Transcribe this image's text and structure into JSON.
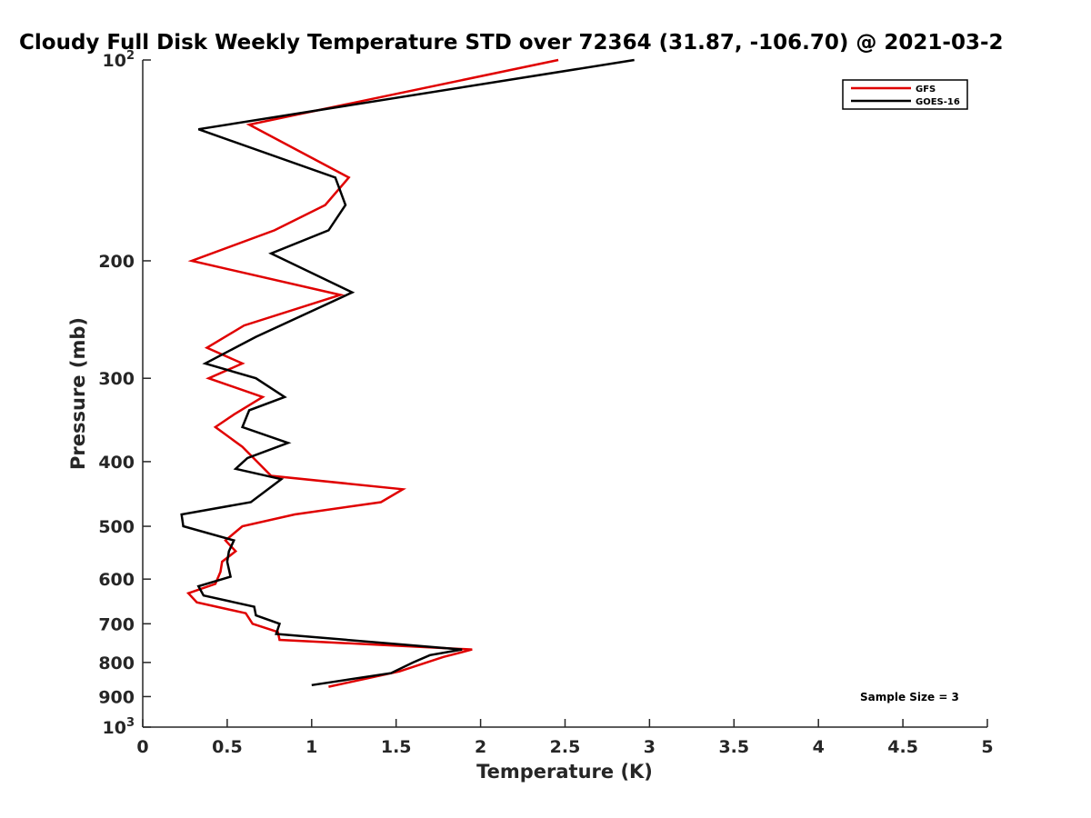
{
  "chart_data": {
    "type": "line",
    "title": "Cloudy Full Disk Weekly Temperature STD over 72364 (31.87, -106.70) @ 2021-03-2",
    "xlabel": "Temperature (K)",
    "ylabel": "Pressure (mb)",
    "xlim": [
      0,
      5
    ],
    "ylim": [
      100,
      1000
    ],
    "y_scale": "log",
    "y_reversed": true,
    "x_ticks": [
      0,
      0.5,
      1,
      1.5,
      2,
      2.5,
      3,
      3.5,
      4,
      4.5,
      5
    ],
    "x_tick_labels": [
      "0",
      "0.5",
      "1",
      "1.5",
      "2",
      "2.5",
      "3",
      "3.5",
      "4",
      "4.5",
      "5"
    ],
    "y_ticks": [
      {
        "value": 100,
        "base": "10",
        "exp": "2"
      },
      {
        "value": 200,
        "label": "200"
      },
      {
        "value": 300,
        "label": "300"
      },
      {
        "value": 400,
        "label": "400"
      },
      {
        "value": 500,
        "label": "500"
      },
      {
        "value": 600,
        "label": "600"
      },
      {
        "value": 700,
        "label": "700"
      },
      {
        "value": 800,
        "label": "800"
      },
      {
        "value": 900,
        "label": "900"
      },
      {
        "value": 1000,
        "base": "10",
        "exp": "3"
      }
    ],
    "grid": false,
    "legend_position": "top-right",
    "annotation": "Sample Size = 3",
    "series": [
      {
        "name": "GFS",
        "color": "#e00000",
        "points": [
          [
            2.46,
            100
          ],
          [
            0.63,
            125
          ],
          [
            1.22,
            150
          ],
          [
            1.08,
            165
          ],
          [
            0.78,
            180
          ],
          [
            0.29,
            200
          ],
          [
            1.17,
            225
          ],
          [
            0.6,
            250
          ],
          [
            0.38,
            270
          ],
          [
            0.59,
            285
          ],
          [
            0.39,
            300
          ],
          [
            0.71,
            320
          ],
          [
            0.54,
            340
          ],
          [
            0.43,
            355
          ],
          [
            0.59,
            380
          ],
          [
            0.76,
            420
          ],
          [
            1.54,
            440
          ],
          [
            1.41,
            460
          ],
          [
            0.9,
            480
          ],
          [
            0.59,
            500
          ],
          [
            0.49,
            525
          ],
          [
            0.55,
            545
          ],
          [
            0.47,
            565
          ],
          [
            0.46,
            585
          ],
          [
            0.43,
            610
          ],
          [
            0.27,
            630
          ],
          [
            0.32,
            650
          ],
          [
            0.61,
            675
          ],
          [
            0.65,
            700
          ],
          [
            0.8,
            720
          ],
          [
            0.81,
            740
          ],
          [
            1.95,
            765
          ],
          [
            1.78,
            785
          ],
          [
            1.52,
            825
          ],
          [
            1.1,
            870
          ]
        ]
      },
      {
        "name": "GOES-16",
        "color": "#000000",
        "points": [
          [
            2.91,
            100
          ],
          [
            0.33,
            127
          ],
          [
            1.14,
            150
          ],
          [
            1.2,
            165
          ],
          [
            1.1,
            180
          ],
          [
            0.76,
            195
          ],
          [
            1.24,
            223
          ],
          [
            0.67,
            260
          ],
          [
            0.37,
            285
          ],
          [
            0.67,
            300
          ],
          [
            0.84,
            320
          ],
          [
            0.63,
            335
          ],
          [
            0.59,
            355
          ],
          [
            0.86,
            375
          ],
          [
            0.62,
            395
          ],
          [
            0.55,
            410
          ],
          [
            0.82,
            425
          ],
          [
            0.64,
            460
          ],
          [
            0.23,
            480
          ],
          [
            0.24,
            500
          ],
          [
            0.54,
            525
          ],
          [
            0.51,
            545
          ],
          [
            0.5,
            565
          ],
          [
            0.52,
            595
          ],
          [
            0.33,
            615
          ],
          [
            0.36,
            635
          ],
          [
            0.66,
            660
          ],
          [
            0.67,
            680
          ],
          [
            0.81,
            700
          ],
          [
            0.79,
            725
          ],
          [
            1.89,
            765
          ],
          [
            1.7,
            780
          ],
          [
            1.6,
            800
          ],
          [
            1.47,
            830
          ],
          [
            1.0,
            865
          ]
        ]
      }
    ]
  }
}
